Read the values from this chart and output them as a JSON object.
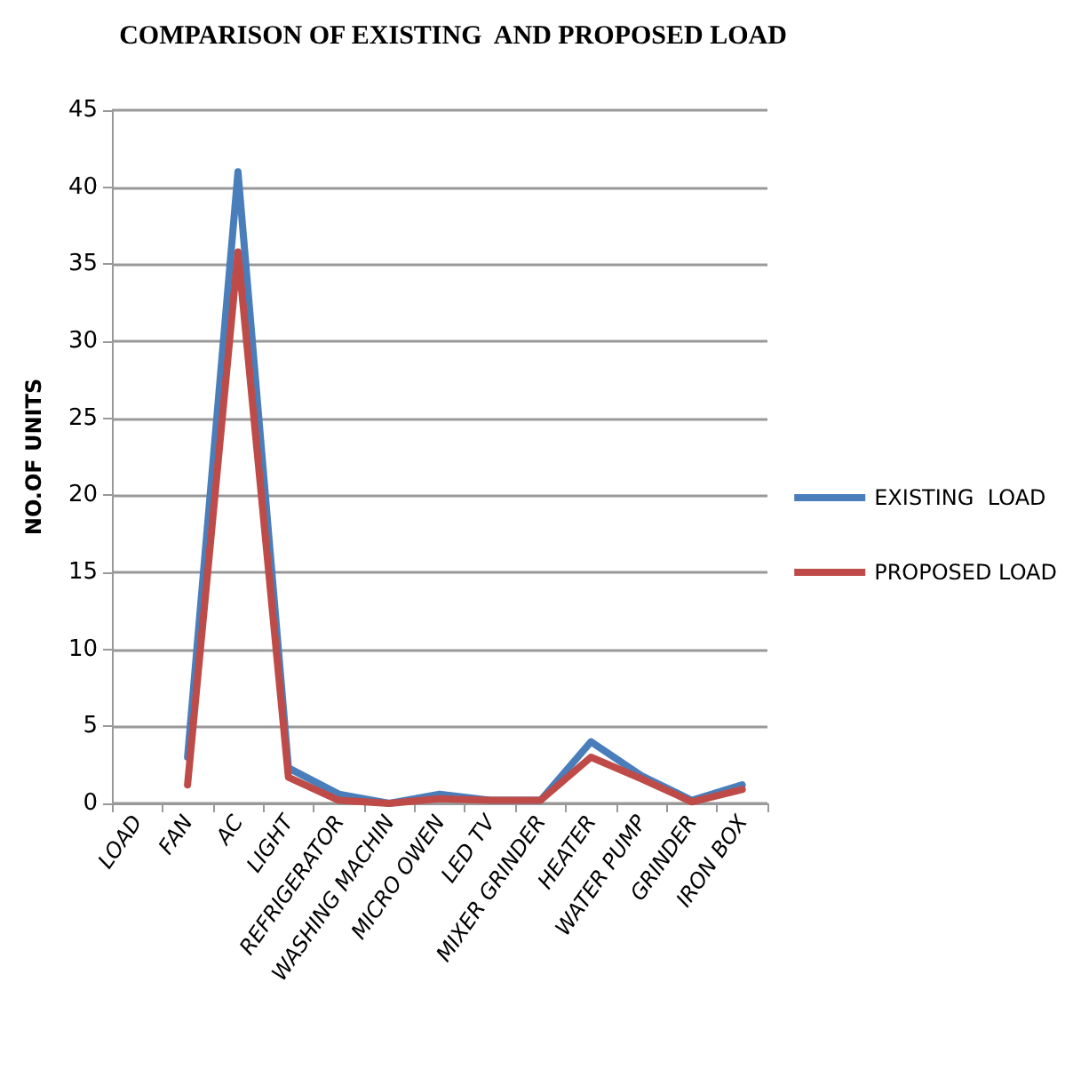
{
  "chart_data": {
    "type": "line",
    "title": "COMPARISON OF EXISTING  AND PROPOSED LOAD",
    "ylabel": "NO.OF UNITS",
    "categories": [
      "LOAD",
      "FAN",
      "AC",
      "LIGHT",
      "REFRIGERATOR",
      "WASHING MACHIN",
      "MICRO OWEN",
      "LED TV",
      "MIXER GRINDER",
      "HEATER",
      "WATER PUMP",
      "GRINDER",
      "IRON BOX"
    ],
    "series": [
      {
        "name": "EXISTING  LOAD",
        "color": "#4a7ebb",
        "values": [
          null,
          3,
          41,
          2.3,
          0.6,
          0,
          0.6,
          0.2,
          0.2,
          4,
          1.8,
          0.2,
          1.2
        ]
      },
      {
        "name": "PROPOSED LOAD",
        "color": "#be4b48",
        "values": [
          null,
          1.2,
          35.8,
          1.7,
          0.2,
          0,
          0.3,
          0.2,
          0.2,
          3,
          1.6,
          0.1,
          0.9
        ]
      }
    ],
    "ylim": [
      0,
      45
    ],
    "yticks": [
      0,
      5,
      10,
      15,
      20,
      25,
      30,
      35,
      40,
      45
    ],
    "grid": "y",
    "legend": "right",
    "marker": "none",
    "line_style": "solid"
  }
}
